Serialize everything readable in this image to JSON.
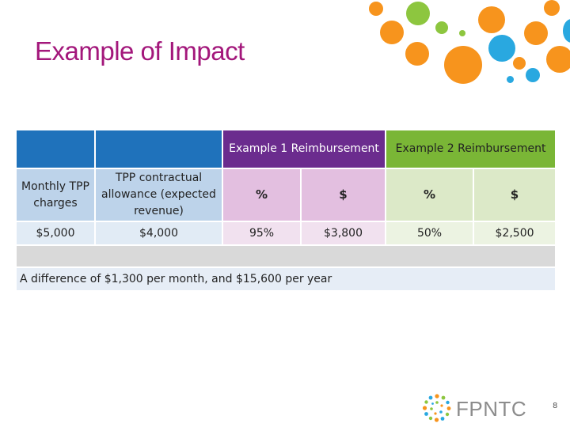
{
  "slide": {
    "title": "Example of Impact",
    "page_number": "8"
  },
  "table": {
    "example1_header": "Example 1 Reimbursement",
    "example2_header": "Example 2 Reimbursement",
    "monthly_label": "Monthly TPP charges",
    "allowance_label": "TPP contractual allowance (expected revenue)",
    "pct_symbol": "%",
    "dollar_symbol": "$",
    "monthly_value": "$5,000",
    "allowance_value": "$4,000",
    "ex1_pct": "95%",
    "ex1_amount": "$3,800",
    "ex2_pct": "50%",
    "ex2_amount": "$2,500",
    "note": "A difference of $1,300 per month, and $15,600 per year"
  },
  "logo": {
    "text": "FPNTC"
  },
  "colors": {
    "title": "#a3177b",
    "header_blue": "#1f72bb",
    "header_purple": "#6b2c8e",
    "header_green": "#7ab636",
    "dot_orange": "#f7941d",
    "dot_green": "#8dc63f",
    "dot_blue": "#29a8e0"
  }
}
